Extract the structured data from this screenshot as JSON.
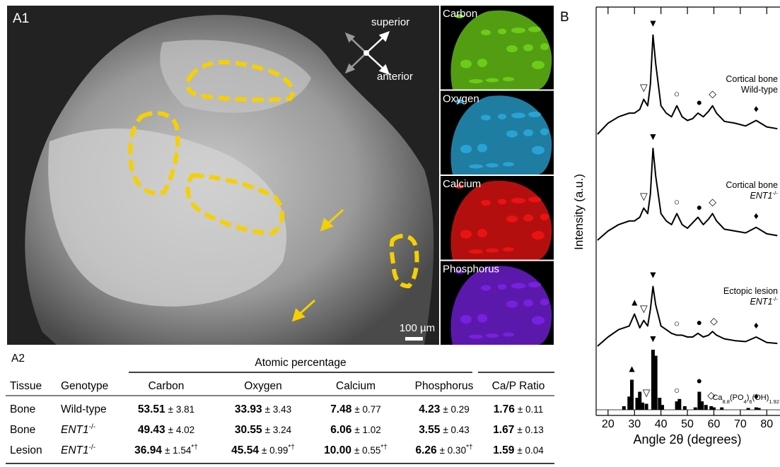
{
  "panel_a1": {
    "label": "A1",
    "superior": "superior",
    "anterior": "anterior",
    "scale_bar": "100 µm",
    "maps": [
      {
        "name": "Carbon",
        "color": "#6fd21a"
      },
      {
        "name": "Oxygen",
        "color": "#2aa7d8"
      },
      {
        "name": "Calcium",
        "color": "#f01414"
      },
      {
        "name": "Phosphorus",
        "color": "#7a22e6"
      }
    ]
  },
  "panel_a2": {
    "label": "A2",
    "table": {
      "group_header": "Atomic percentage",
      "columns": [
        "Tissue",
        "Genotype",
        "Carbon",
        "Oxygen",
        "Calcium",
        "Phosphorus",
        "Ca/P Ratio"
      ],
      "rows": [
        {
          "tissue": "Bone",
          "genotype": {
            "text": "Wild-type",
            "italic": false
          },
          "cells": [
            {
              "mean": "53.51",
              "sd": "± 3.81"
            },
            {
              "mean": "33.93",
              "sd": "± 3.43"
            },
            {
              "mean": "7.48",
              "sd": "± 0.77"
            },
            {
              "mean": "4.23",
              "sd": "± 0.29"
            },
            {
              "mean": "1.76",
              "sd": "± 0.11"
            }
          ]
        },
        {
          "tissue": "Bone",
          "genotype": {
            "text": "ENT1",
            "sup": "-/-",
            "italic": true
          },
          "cells": [
            {
              "mean": "49.43",
              "sd": "± 4.02"
            },
            {
              "mean": "30.55",
              "sd": "± 3.24"
            },
            {
              "mean": "6.06",
              "sd": "± 1.02"
            },
            {
              "mean": "3.55",
              "sd": "± 0.43"
            },
            {
              "mean": "1.67",
              "sd": "± 0.13"
            }
          ]
        },
        {
          "tissue": "Lesion",
          "genotype": {
            "text": "ENT1",
            "sup": "-/-",
            "italic": true
          },
          "cells": [
            {
              "mean": "36.94",
              "sd": "± 1.54",
              "sup": "*†"
            },
            {
              "mean": "45.54",
              "sd": "± 0.99",
              "sup": "*†"
            },
            {
              "mean": "10.00",
              "sd": "± 0.55",
              "sup": "*†"
            },
            {
              "mean": "6.26",
              "sd": "± 0.30",
              "sup": "*†"
            },
            {
              "mean": "1.59",
              "sd": "± 0.04"
            }
          ]
        }
      ]
    }
  },
  "chart_data": {
    "type": "xrd",
    "panel_label": "B",
    "x_label": "Angle 2θ (degrees)",
    "y_label": "Intensity (a.u.)",
    "xlim": [
      15.5,
      85
    ],
    "xticks": [
      20,
      30,
      40,
      50,
      60,
      70,
      80
    ],
    "x": [
      16,
      20,
      24,
      28,
      30,
      32,
      33.5,
      35,
      36,
      37,
      38,
      40,
      42,
      44,
      46,
      48,
      50,
      52,
      54,
      56,
      58,
      59.5,
      61,
      64,
      68,
      72,
      76,
      80,
      84
    ],
    "series": [
      {
        "name": "Cortical bone",
        "genotype": {
          "text": "Wild-type",
          "italic": false
        },
        "color": "#000000",
        "values": [
          0,
          12,
          19,
          23,
          23,
          27,
          38,
          31,
          54,
          108,
          77,
          31,
          23,
          19,
          31,
          19,
          15,
          17,
          23,
          19,
          25,
          31,
          23,
          14,
          12,
          9,
          15,
          8,
          6
        ],
        "markers": [
          {
            "symbol": "▽",
            "x": 33.5
          },
          {
            "symbol": "▼",
            "x": 37
          },
          {
            "symbol": "○",
            "x": 46
          },
          {
            "symbol": "●",
            "x": 54.5
          },
          {
            "symbol": "◇",
            "x": 59.5
          },
          {
            "symbol": "♦",
            "x": 76
          }
        ]
      },
      {
        "name": "Cortical bone",
        "genotype": {
          "text": "ENT1",
          "sup": "-/-",
          "italic": true
        },
        "color": "#000000",
        "values": [
          0,
          10,
          17,
          21,
          21,
          25,
          35,
          29,
          50,
          100,
          70,
          29,
          21,
          17,
          29,
          17,
          13,
          19,
          25,
          17,
          23,
          29,
          21,
          12,
          10,
          8,
          14,
          7,
          5
        ],
        "markers": [
          {
            "symbol": "▽",
            "x": 33.5
          },
          {
            "symbol": "▼",
            "x": 37
          },
          {
            "symbol": "○",
            "x": 46
          },
          {
            "symbol": "●",
            "x": 54.5
          },
          {
            "symbol": "◇",
            "x": 59.5
          },
          {
            "symbol": "♦",
            "x": 76
          }
        ]
      },
      {
        "name": "Ectopic lesion",
        "genotype": {
          "text": "ENT1",
          "sup": "-/-",
          "italic": true
        },
        "color": "#000000",
        "values": [
          0,
          10,
          18,
          22,
          35,
          20,
          28,
          22,
          40,
          65,
          45,
          22,
          18,
          14,
          12,
          12,
          10,
          10,
          14,
          10,
          12,
          16,
          12,
          8,
          6,
          5,
          10,
          4,
          3
        ],
        "markers": [
          {
            "symbol": "▲",
            "x": 30
          },
          {
            "symbol": "▽",
            "x": 33.5
          },
          {
            "symbol": "▼",
            "x": 37
          },
          {
            "symbol": "○",
            "x": 46
          },
          {
            "symbol": "●",
            "x": 54.5
          },
          {
            "symbol": "◇",
            "x": 60
          },
          {
            "symbol": "♦",
            "x": 76
          }
        ]
      }
    ],
    "reference": {
      "formula": [
        "Ca",
        "8.8",
        "(PO",
        "4",
        ")",
        "6",
        "(OH)",
        "1.92"
      ],
      "color": "#000000",
      "x": [
        26,
        28,
        29,
        31,
        32,
        33,
        34.5,
        37,
        38,
        39.5,
        40.5,
        46,
        47,
        49,
        53,
        54.5,
        55.5,
        57,
        59,
        60,
        63,
        73,
        76,
        77
      ],
      "values": [
        6,
        22,
        50,
        20,
        30,
        12,
        10,
        100,
        90,
        20,
        8,
        14,
        18,
        6,
        4,
        30,
        14,
        8,
        6,
        4,
        4,
        3,
        4,
        3
      ],
      "markers": [
        {
          "symbol": "▲",
          "x": 29
        },
        {
          "symbol": "▽",
          "x": 34.5
        },
        {
          "symbol": "▼",
          "x": 37
        },
        {
          "symbol": "○",
          "x": 46
        },
        {
          "symbol": "●",
          "x": 54.5
        },
        {
          "symbol": "◇",
          "x": 59
        },
        {
          "symbol": "♦",
          "x": 76
        }
      ]
    }
  }
}
